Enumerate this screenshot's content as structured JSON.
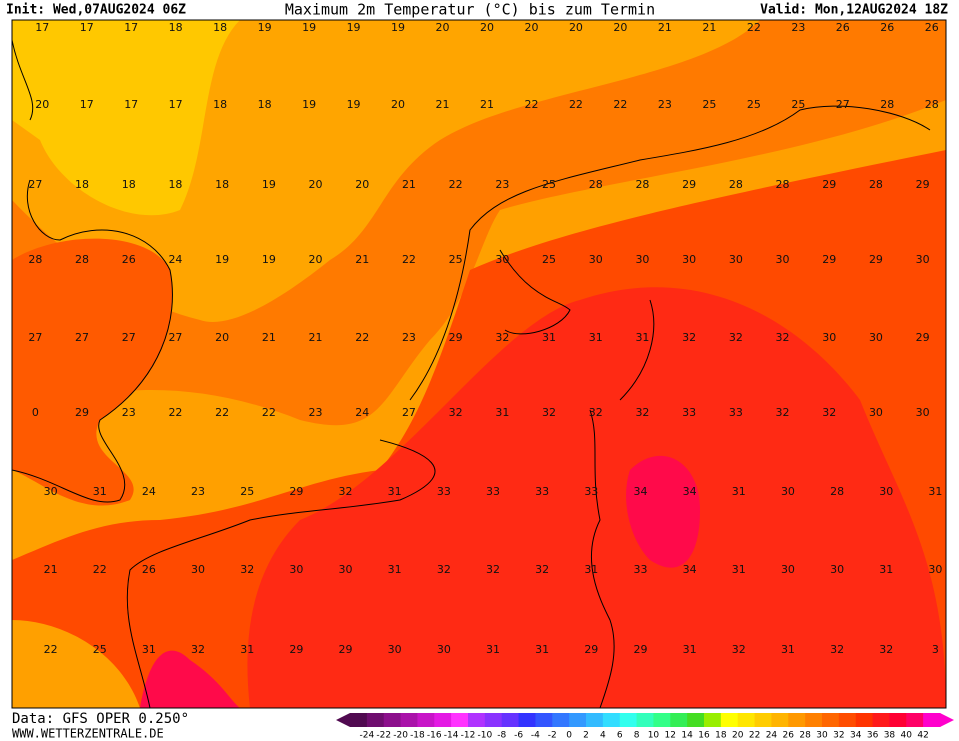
{
  "header": {
    "init": "Init: Wed,07AUG2024 06Z",
    "title": "Maximum 2m Temperatur (°C) bis zum Termin",
    "valid": "Valid: Mon,12AUG2024 18Z"
  },
  "map": {
    "rows": [
      [
        17,
        17,
        17,
        18,
        18,
        19,
        19,
        19,
        19,
        20,
        20,
        20,
        20,
        20,
        21,
        21,
        22,
        23,
        26,
        26,
        26
      ],
      [
        20,
        17,
        17,
        17,
        18,
        18,
        19,
        19,
        20,
        21,
        21,
        22,
        22,
        22,
        23,
        25,
        25,
        25,
        27,
        28,
        28
      ],
      [
        27,
        18,
        18,
        18,
        18,
        19,
        20,
        20,
        21,
        22,
        23,
        25,
        28,
        28,
        29,
        28,
        28,
        29,
        28,
        29
      ],
      [
        28,
        28,
        26,
        24,
        19,
        19,
        20,
        21,
        22,
        25,
        30,
        25,
        30,
        30,
        30,
        30,
        30,
        29,
        29,
        30
      ],
      [
        27,
        27,
        27,
        27,
        20,
        21,
        21,
        22,
        23,
        29,
        32,
        31,
        31,
        31,
        32,
        32,
        32,
        30,
        30,
        29
      ],
      [
        0,
        29,
        23,
        22,
        22,
        22,
        23,
        24,
        27,
        32,
        31,
        32,
        32,
        32,
        33,
        33,
        32,
        32,
        30,
        30
      ],
      [
        30,
        31,
        24,
        23,
        25,
        29,
        32,
        31,
        33,
        33,
        33,
        33,
        34,
        34,
        31,
        30,
        28,
        30,
        31
      ],
      [
        21,
        22,
        26,
        30,
        32,
        30,
        30,
        31,
        32,
        32,
        32,
        31,
        33,
        34,
        31,
        30,
        30,
        31,
        30
      ],
      [
        22,
        25,
        31,
        32,
        31,
        29,
        29,
        30,
        30,
        31,
        31,
        29,
        29,
        31,
        32,
        31,
        32,
        32,
        3
      ]
    ]
  },
  "colorbar": {
    "labels": [
      -24,
      -22,
      -20,
      -18,
      -16,
      -14,
      -12,
      -10,
      -8,
      -6,
      -4,
      -2,
      0,
      2,
      4,
      6,
      8,
      10,
      12,
      14,
      16,
      18,
      20,
      22,
      24,
      26,
      28,
      30,
      32,
      34,
      36,
      38,
      40,
      42
    ],
    "colors": [
      "#500a50",
      "#6e0d6e",
      "#8c0f8c",
      "#aa12aa",
      "#c815c8",
      "#e41ae4",
      "#ff33ff",
      "#b033ff",
      "#8a33ff",
      "#6633ff",
      "#3333ff",
      "#3355ff",
      "#3377ff",
      "#3399ff",
      "#33bbff",
      "#33ddff",
      "#33ffee",
      "#33ffbb",
      "#33ff88",
      "#33ee55",
      "#44dd22",
      "#99ee00",
      "#ffff00",
      "#ffe600",
      "#ffcc00",
      "#ffb400",
      "#ff9900",
      "#ff8000",
      "#ff6600",
      "#ff4d00",
      "#ff3300",
      "#ff1a1a",
      "#ff0033",
      "#ff0066",
      "#ff00cc"
    ]
  },
  "footer": {
    "data": "Data: GFS OPER 0.250°",
    "site": "WWW.WETTERZENTRALE.DE"
  }
}
